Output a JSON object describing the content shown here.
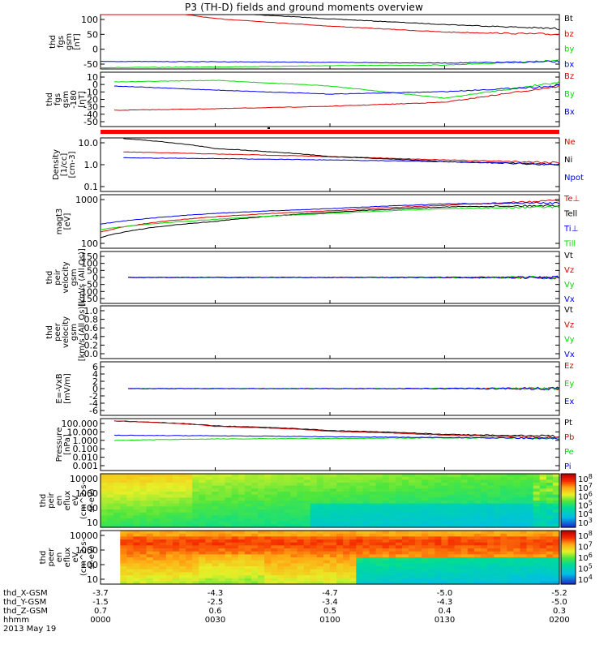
{
  "title": "P3 (TH-D) fields and ground moments overview",
  "colors": {
    "black": "#000000",
    "red": "#e00000",
    "green": "#00dd00",
    "blue": "#0000ee",
    "bar": "#ff0000"
  },
  "chart_data": [
    {
      "id": "fgs_gsm",
      "type": "line",
      "ylabel": [
        "thd",
        "fgs",
        "gsm",
        "[nT]"
      ],
      "yticks": [
        100,
        50,
        0,
        -50
      ],
      "ylim": [
        -60,
        105
      ],
      "x": [
        0,
        0.25,
        0.5,
        0.75,
        1
      ],
      "series": [
        {
          "name": "Bt",
          "color": "black",
          "values": [
            140,
            112,
            92,
            75,
            62
          ]
        },
        {
          "name": "bz",
          "color": "red",
          "values": [
            140,
            93,
            70,
            52,
            45
          ]
        },
        {
          "name": "by",
          "color": "green",
          "values": [
            -56,
            -54,
            -50,
            -48,
            -35
          ]
        },
        {
          "name": "bx",
          "color": "blue",
          "values": [
            -37,
            -38,
            -40,
            -42,
            -38
          ]
        }
      ]
    },
    {
      "id": "fgs_sm",
      "type": "line",
      "ylabel": [
        "thd",
        "fgs",
        "gsm",
        "-180",
        "[nT]"
      ],
      "yticks": [
        10,
        0,
        -10,
        -20,
        -30,
        -40,
        -50
      ],
      "ylim": [
        -55,
        12
      ],
      "x": [
        0.03,
        0.25,
        0.5,
        0.75,
        1
      ],
      "series": [
        {
          "name": "Bz",
          "color": "red",
          "values": [
            -35,
            -33,
            -30,
            -25,
            -5
          ]
        },
        {
          "name": "By",
          "color": "green",
          "values": [
            0,
            2,
            -5,
            -20,
            0
          ]
        },
        {
          "name": "Bx",
          "color": "blue",
          "values": [
            -5,
            -10,
            -15,
            -12,
            -5
          ]
        }
      ]
    },
    {
      "id": "density",
      "type": "line",
      "scale": "log",
      "ylabel": [
        "Density",
        "[1/cc]",
        "[cm-3]"
      ],
      "yticks": [
        "10.0",
        "1.0",
        "0.1"
      ],
      "ylim": [
        0.1,
        10
      ],
      "x": [
        0.05,
        0.25,
        0.5,
        0.75,
        1
      ],
      "series": [
        {
          "name": "Ne",
          "color": "red",
          "values": [
            3.0,
            2.5,
            2.0,
            1.5,
            1.2
          ]
        },
        {
          "name": "Ni",
          "color": "black",
          "values": [
            9.5,
            4.0,
            2.0,
            1.3,
            1.0
          ]
        },
        {
          "name": "Npot",
          "color": "blue",
          "values": [
            1.8,
            1.7,
            1.5,
            1.3,
            1.0
          ]
        }
      ]
    },
    {
      "id": "temperature",
      "type": "line",
      "scale": "log",
      "ylabel": [
        "magt3",
        "[eV]"
      ],
      "yticks": [
        "1000",
        "100"
      ],
      "ylim": [
        100,
        10000
      ],
      "x": [
        0,
        0.25,
        0.5,
        0.75,
        1
      ],
      "series": [
        {
          "name": "Te⊥",
          "color": "red",
          "values": [
            400,
            1500,
            2500,
            4000,
            6000
          ]
        },
        {
          "name": "Tell",
          "color": "black",
          "values": [
            250,
            1000,
            2200,
            3500,
            4000
          ]
        },
        {
          "name": "Ti⊥",
          "color": "blue",
          "values": [
            800,
            2000,
            3000,
            4500,
            5000
          ]
        },
        {
          "name": "Till",
          "color": "green",
          "values": [
            500,
            1200,
            2000,
            3000,
            3500
          ]
        }
      ]
    },
    {
      "id": "peir_velocity",
      "type": "line",
      "ylabel": [
        "thd",
        "peir",
        "velocity",
        "gsm",
        "[km/s (All Qs)]"
      ],
      "yticks": [
        "150",
        "100",
        "50",
        "0",
        "-50",
        "-100",
        "-150"
      ],
      "ylim": [
        -150,
        150
      ],
      "series": [
        {
          "name": "Vt",
          "color": "black"
        },
        {
          "name": "Vz",
          "color": "red"
        },
        {
          "name": "Vy",
          "color": "green"
        },
        {
          "name": "Vx",
          "color": "blue"
        }
      ]
    },
    {
      "id": "peer_velocity",
      "type": "line",
      "ylabel": [
        "thd",
        "peer",
        "velocity",
        "gsm",
        "[km/s (All Qs)]"
      ],
      "yticks": [
        "1.0",
        "0.8",
        "0.6",
        "0.4",
        "0.2",
        "0.0"
      ],
      "ylim": [
        0,
        1
      ],
      "series": [
        {
          "name": "Vt",
          "color": "black"
        },
        {
          "name": "Vz",
          "color": "red"
        },
        {
          "name": "Vy",
          "color": "green"
        },
        {
          "name": "Vx",
          "color": "blue"
        }
      ]
    },
    {
      "id": "efield",
      "type": "line",
      "ylabel": [
        "E=-VxB",
        "[mV/m]"
      ],
      "yticks": [
        "6",
        "4",
        "2",
        "0",
        "-2",
        "-4",
        "-6"
      ],
      "ylim": [
        -6,
        6
      ],
      "series": [
        {
          "name": "Ez",
          "color": "red"
        },
        {
          "name": "Ey",
          "color": "green"
        },
        {
          "name": "Ex",
          "color": "blue"
        }
      ]
    },
    {
      "id": "pressure",
      "type": "line",
      "scale": "log",
      "ylabel": [
        "Pressure",
        "[nPa]"
      ],
      "yticks": [
        "100.000",
        "10.000",
        "1.000",
        "0.100",
        "0.010",
        "0.001"
      ],
      "ylim": [
        0.001,
        100
      ],
      "x": [
        0.03,
        0.25,
        0.5,
        0.75,
        1
      ],
      "series": [
        {
          "name": "Pt",
          "color": "black",
          "values": [
            60,
            20,
            7,
            3,
            2
          ]
        },
        {
          "name": "Pb",
          "color": "red",
          "values": [
            60,
            18,
            6,
            2.5,
            1.5
          ]
        },
        {
          "name": "Pe",
          "color": "green",
          "values": [
            0.8,
            1.1,
            1.2,
            1.4,
            1.3
          ]
        },
        {
          "name": "Pi",
          "color": "blue",
          "values": [
            2.5,
            2.2,
            1.8,
            1.5,
            1.2
          ]
        }
      ]
    },
    {
      "id": "peir_spectrogram",
      "type": "heatmap",
      "ylabel": [
        "thd",
        "peir",
        "en",
        "eflux",
        "eV",
        "(cm^2-s-",
        "sr-eV)"
      ],
      "yticks": [
        "10000",
        "1000",
        "100",
        "10"
      ],
      "colorbar_ticks": [
        "10^8",
        "10^7",
        "10^6",
        "10^5",
        "10^4",
        "10^3"
      ]
    },
    {
      "id": "peer_spectrogram",
      "type": "heatmap",
      "ylabel": [
        "thd",
        "peer",
        "en",
        "eflux",
        "eV",
        "(cm^2-s-",
        "sr-eV)"
      ],
      "yticks": [
        "10000",
        "1000",
        "100",
        "10"
      ],
      "colorbar_ticks": [
        "10^8",
        "10^7",
        "10^6",
        "10^5",
        "10^4"
      ]
    }
  ],
  "xaxis": {
    "row_labels": [
      "thd_X-GSM",
      "thd_Y-GSM",
      "thd_Z-GSM",
      "hhmm",
      "2013 May 19"
    ],
    "columns": [
      {
        "X": "-3.7",
        "Y": "-1.5",
        "Z": "0.7",
        "t": "0000"
      },
      {
        "X": "-4.3",
        "Y": "-2.5",
        "Z": "0.6",
        "t": "0030"
      },
      {
        "X": "-4.7",
        "Y": "-3.4",
        "Z": "0.5",
        "t": "0100"
      },
      {
        "X": "-5.0",
        "Y": "-4.3",
        "Z": "0.4",
        "t": "0130"
      },
      {
        "X": "-5.2",
        "Y": "-5.0",
        "Z": "0.3",
        "t": "0200"
      }
    ]
  }
}
